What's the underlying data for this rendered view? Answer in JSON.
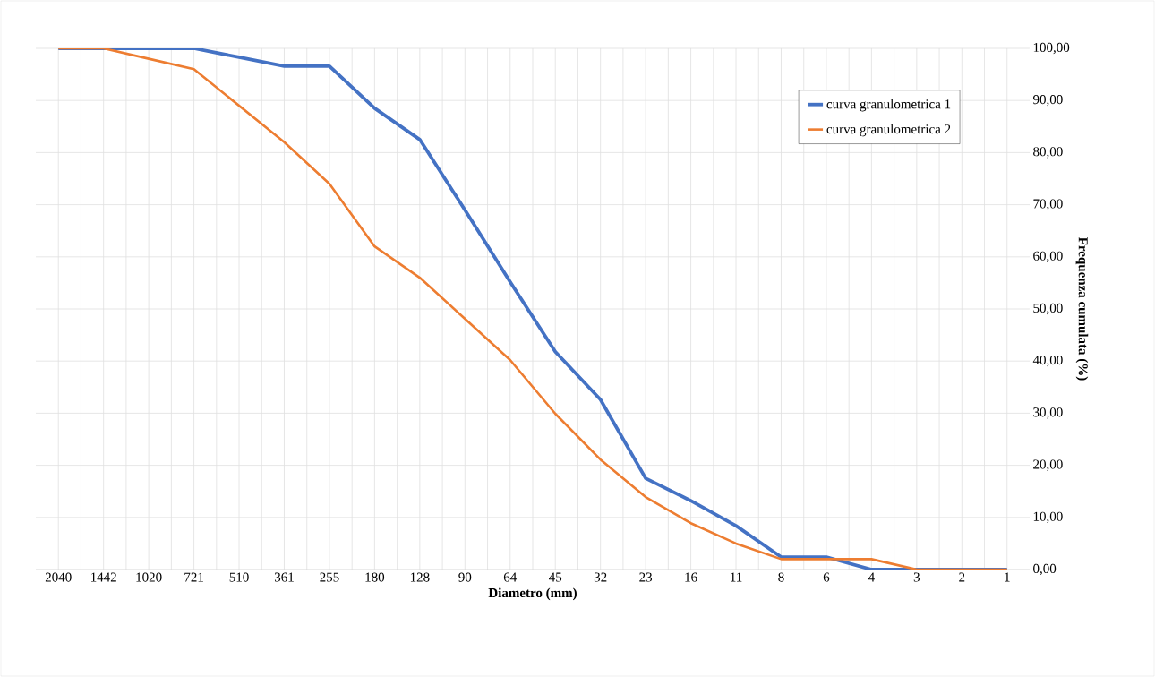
{
  "chart_data": {
    "type": "line",
    "xlabel": "Diametro (mm)",
    "ylabel": "Frequenza cumulata (%)",
    "categories": [
      "2040",
      "1442",
      "1020",
      "721",
      "510",
      "361",
      "255",
      "180",
      "128",
      "90",
      "64",
      "45",
      "32",
      "23",
      "16",
      "11",
      "8",
      "6",
      "4",
      "3",
      "2",
      "1"
    ],
    "series": [
      {
        "name": "curva granulometrica 1",
        "color": "#4472c4",
        "values": [
          100,
          100,
          100,
          100,
          98.3,
          96.6,
          96.6,
          88.5,
          82.5,
          69,
          55.2,
          41.8,
          32.6,
          17.5,
          13.2,
          8.4,
          2.4,
          2.4,
          0,
          0,
          0,
          0
        ]
      },
      {
        "name": "curva granulometrica 2",
        "color": "#ed7d31",
        "values": [
          100,
          100,
          98,
          96,
          89,
          82,
          74,
          62,
          56,
          48.1,
          40.2,
          29.9,
          21.1,
          13.9,
          8.9,
          5,
          2,
          2,
          2,
          0,
          0,
          0
        ]
      }
    ],
    "ylim": [
      0,
      100
    ],
    "yticks": [
      {
        "value": 0,
        "label": "0,00"
      },
      {
        "value": 10,
        "label": "10,00"
      },
      {
        "value": 20,
        "label": "20,00"
      },
      {
        "value": 30,
        "label": "30,00"
      },
      {
        "value": 40,
        "label": "40,00"
      },
      {
        "value": 50,
        "label": "50,00"
      },
      {
        "value": 60,
        "label": "60,00"
      },
      {
        "value": 70,
        "label": "70,00"
      },
      {
        "value": 80,
        "label": "80,00"
      },
      {
        "value": 90,
        "label": "90,00"
      },
      {
        "value": 100,
        "label": "100,00"
      }
    ],
    "grid": true,
    "legend": "top right",
    "marker": "none",
    "line_style": "solid"
  }
}
